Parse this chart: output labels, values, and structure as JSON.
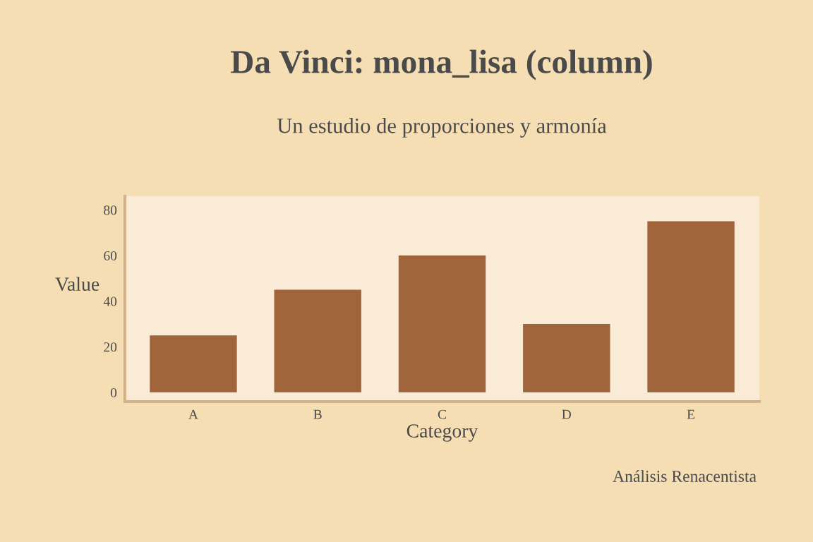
{
  "chart_data": {
    "type": "bar",
    "title": "Da Vinci: mona_lisa (column)",
    "subtitle": "Un estudio de proporciones y armonía",
    "xlabel": "Category",
    "ylabel": "Value",
    "annotations": [
      "Análisis Renacentista"
    ],
    "categories": [
      "A",
      "B",
      "C",
      "D",
      "E"
    ],
    "values": [
      25,
      45,
      60,
      30,
      75
    ],
    "color": "#a0653a",
    "ylim": [
      -4,
      86
    ],
    "yticks": [
      0,
      20,
      40,
      60,
      80
    ],
    "grid": false,
    "legend": false
  }
}
